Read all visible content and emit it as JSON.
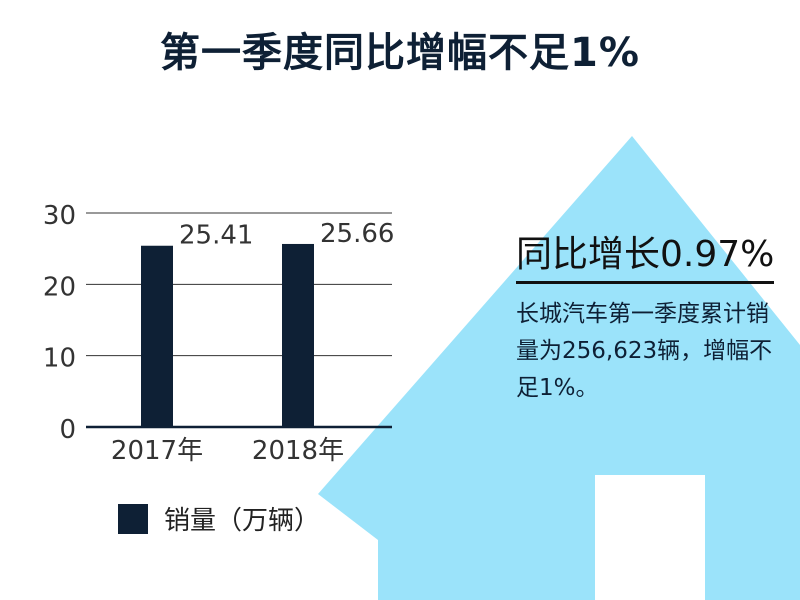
{
  "title": "第一季度同比增幅不足1%",
  "headline": "同比增长0.97%",
  "body": "长城汽车第一季度累计销量为256,623辆，增幅不足1%。",
  "colors": {
    "bar": "#0e2035",
    "arrow": "#9be3fa",
    "title": "#0e2035"
  },
  "chart_data": {
    "type": "bar",
    "categories": [
      "2017年",
      "2018年"
    ],
    "values": [
      25.41,
      25.66
    ],
    "data_labels": [
      "25.41",
      "25.66"
    ],
    "ylim": [
      0,
      30
    ],
    "yticks": [
      0,
      10,
      20,
      30
    ],
    "legend": "销量（万辆）",
    "legend_position": "bottom-left",
    "grid": true
  }
}
